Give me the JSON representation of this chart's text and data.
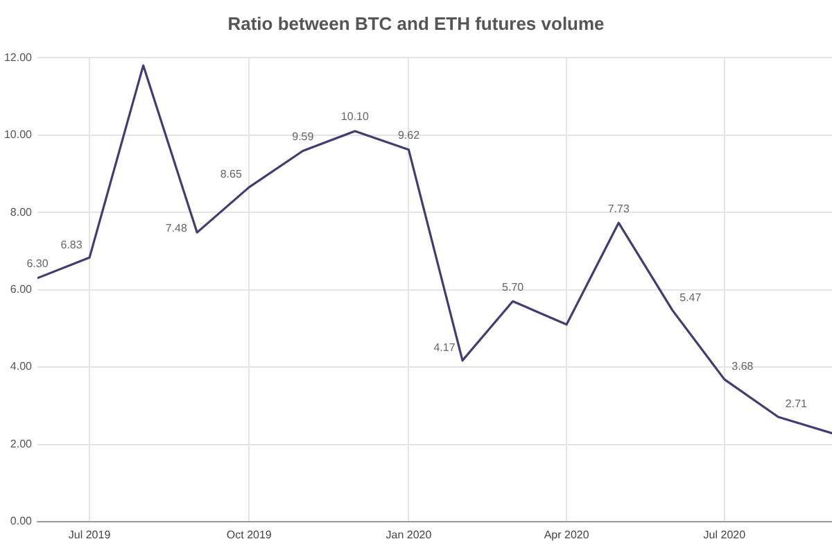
{
  "chart_data": {
    "type": "line",
    "title": "Ratio between BTC and ETH futures volume",
    "x": [
      "2019-06",
      "2019-07",
      "2019-08",
      "2019-09",
      "2019-10",
      "2019-11",
      "2019-12",
      "2020-01",
      "2020-02",
      "2020-03",
      "2020-04",
      "2020-05",
      "2020-06",
      "2020-07",
      "2020-08",
      "2020-09"
    ],
    "values": [
      6.3,
      6.83,
      11.8,
      7.48,
      8.65,
      9.59,
      10.1,
      9.62,
      4.17,
      5.7,
      5.1,
      7.73,
      5.47,
      3.68,
      2.71,
      2.29
    ],
    "value_labels": [
      "6.30",
      "6.83",
      null,
      "7.48",
      "8.65",
      "9.59",
      "10.10",
      "9.62",
      "4.17",
      "5.70",
      null,
      "7.73",
      "5.47",
      "3.68",
      "2.71",
      null
    ],
    "color": "#3f3d72",
    "xlim": [
      "2019-06",
      "2020-09"
    ],
    "xticks": [
      {
        "value": "2019-07",
        "label": "Jul 2019"
      },
      {
        "value": "2019-10",
        "label": "Oct 2019"
      },
      {
        "value": "2020-01",
        "label": "Jan 2020"
      },
      {
        "value": "2020-04",
        "label": "Apr 2020"
      },
      {
        "value": "2020-07",
        "label": "Jul 2020"
      }
    ],
    "ylim": [
      0,
      12
    ],
    "yticks": [
      {
        "value": 0,
        "label": "0.00"
      },
      {
        "value": 2,
        "label": "2.00"
      },
      {
        "value": 4,
        "label": "4.00"
      },
      {
        "value": 6,
        "label": "6.00"
      },
      {
        "value": 8,
        "label": "8.00"
      },
      {
        "value": 10,
        "label": "10.00"
      },
      {
        "value": 12,
        "label": "12.00"
      }
    ],
    "grid": true,
    "marker": "none",
    "line_style": "solid"
  }
}
